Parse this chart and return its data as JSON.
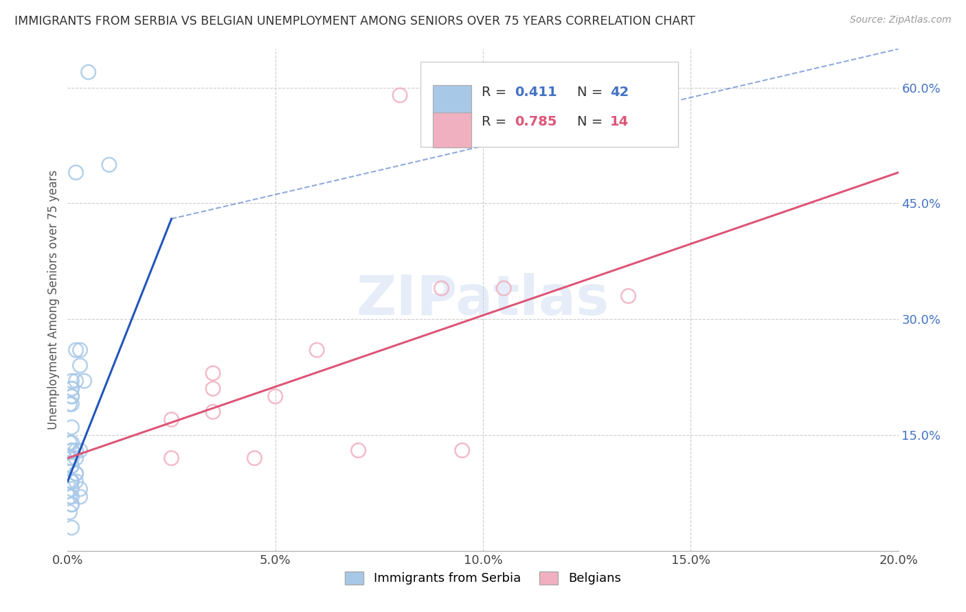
{
  "title": "IMMIGRANTS FROM SERBIA VS BELGIAN UNEMPLOYMENT AMONG SENIORS OVER 75 YEARS CORRELATION CHART",
  "source": "Source: ZipAtlas.com",
  "ylabel": "Unemployment Among Seniors over 75 years",
  "xlim": [
    0.0,
    0.2
  ],
  "ylim": [
    0.0,
    0.65
  ],
  "xticks": [
    0.0,
    0.05,
    0.1,
    0.15,
    0.2
  ],
  "yticks": [
    0.15,
    0.3,
    0.45,
    0.6
  ],
  "xtick_labels": [
    "0.0%",
    "5.0%",
    "10.0%",
    "15.0%",
    "20.0%"
  ],
  "ytick_labels": [
    "15.0%",
    "30.0%",
    "45.0%",
    "60.0%"
  ],
  "blue_color": "#a8c8e8",
  "pink_color": "#f0b0c0",
  "blue_line_color": "#2255bb",
  "pink_line_color": "#dd5577",
  "watermark": "ZIPatlas",
  "blue_scatter_x": [
    0.005,
    0.01,
    0.002,
    0.001,
    0.001,
    0.0005,
    0.001,
    0.002,
    0.003,
    0.004,
    0.001,
    0.001,
    0.002,
    0.001,
    0.003,
    0.001,
    0.0005,
    0.001,
    0.001,
    0.001,
    0.002,
    0.002,
    0.001,
    0.0005,
    0.001,
    0.002,
    0.001,
    0.003,
    0.0008,
    0.001,
    0.002,
    0.001,
    0.0005,
    0.001,
    0.002,
    0.001,
    0.003,
    0.001,
    0.0005,
    0.001,
    0.003,
    0.001
  ],
  "blue_scatter_y": [
    0.62,
    0.5,
    0.49,
    0.22,
    0.2,
    0.19,
    0.21,
    0.22,
    0.24,
    0.22,
    0.21,
    0.19,
    0.26,
    0.2,
    0.26,
    0.16,
    0.14,
    0.13,
    0.14,
    0.13,
    0.1,
    0.13,
    0.11,
    0.12,
    0.12,
    0.12,
    0.11,
    0.13,
    0.09,
    0.09,
    0.1,
    0.09,
    0.07,
    0.08,
    0.09,
    0.07,
    0.08,
    0.06,
    0.05,
    0.06,
    0.07,
    0.03
  ],
  "pink_scatter_x": [
    0.09,
    0.035,
    0.06,
    0.035,
    0.08,
    0.05,
    0.105,
    0.035,
    0.025,
    0.07,
    0.045,
    0.095,
    0.025,
    0.135
  ],
  "pink_scatter_y": [
    0.34,
    0.23,
    0.26,
    0.21,
    0.59,
    0.2,
    0.34,
    0.18,
    0.17,
    0.13,
    0.12,
    0.13,
    0.12,
    0.33
  ],
  "blue_solid_trend_x": [
    0.0,
    0.025
  ],
  "blue_solid_trend_y": [
    0.09,
    0.43
  ],
  "blue_dashed_trend_x": [
    0.025,
    0.2
  ],
  "blue_dashed_trend_y": [
    0.43,
    0.65
  ],
  "pink_trend_x": [
    0.0,
    0.2
  ],
  "pink_trend_y": [
    0.12,
    0.49
  ],
  "background_color": "#ffffff",
  "grid_color": "#cccccc",
  "tick_color": "#4472c4"
}
